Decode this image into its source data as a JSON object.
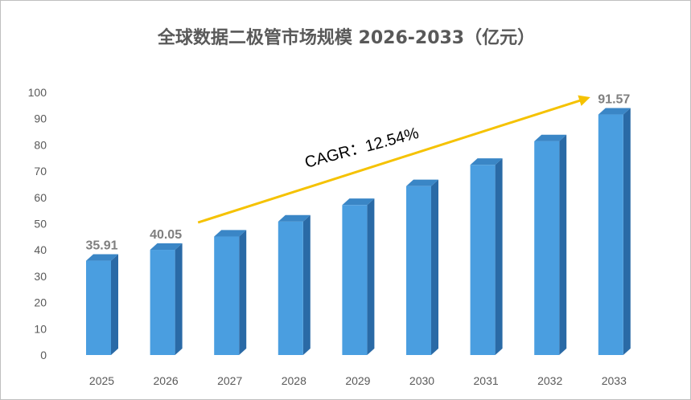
{
  "chart_data": {
    "type": "bar",
    "title": "全球数据二极管市场规模 2026-2033（亿元）",
    "xlabel": "",
    "ylabel": "",
    "categories": [
      "2025",
      "2026",
      "2027",
      "2028",
      "2029",
      "2030",
      "2031",
      "2032",
      "2033"
    ],
    "values": [
      35.91,
      40.05,
      45.1,
      50.8,
      57.1,
      64.3,
      72.4,
      81.4,
      91.57
    ],
    "data_labels": [
      {
        "category": "2025",
        "text": "35.91"
      },
      {
        "category": "2026",
        "text": "40.05"
      },
      {
        "category": "2033",
        "text": "91.57"
      }
    ],
    "ylim": [
      0,
      100
    ],
    "yticks": [
      0,
      10,
      20,
      30,
      40,
      50,
      60,
      70,
      80,
      90,
      100
    ],
    "grid": false,
    "annotation": {
      "text": "CAGR：12.54%",
      "arrow_from": "2027",
      "arrow_to": "2033"
    },
    "colors": {
      "bar_front": "#4a9ee0",
      "bar_side": "#2a6aa6",
      "bar_top": "#3a86c6",
      "arrow": "#f5c200",
      "text": "#595959",
      "label": "#7f7f7f"
    }
  }
}
